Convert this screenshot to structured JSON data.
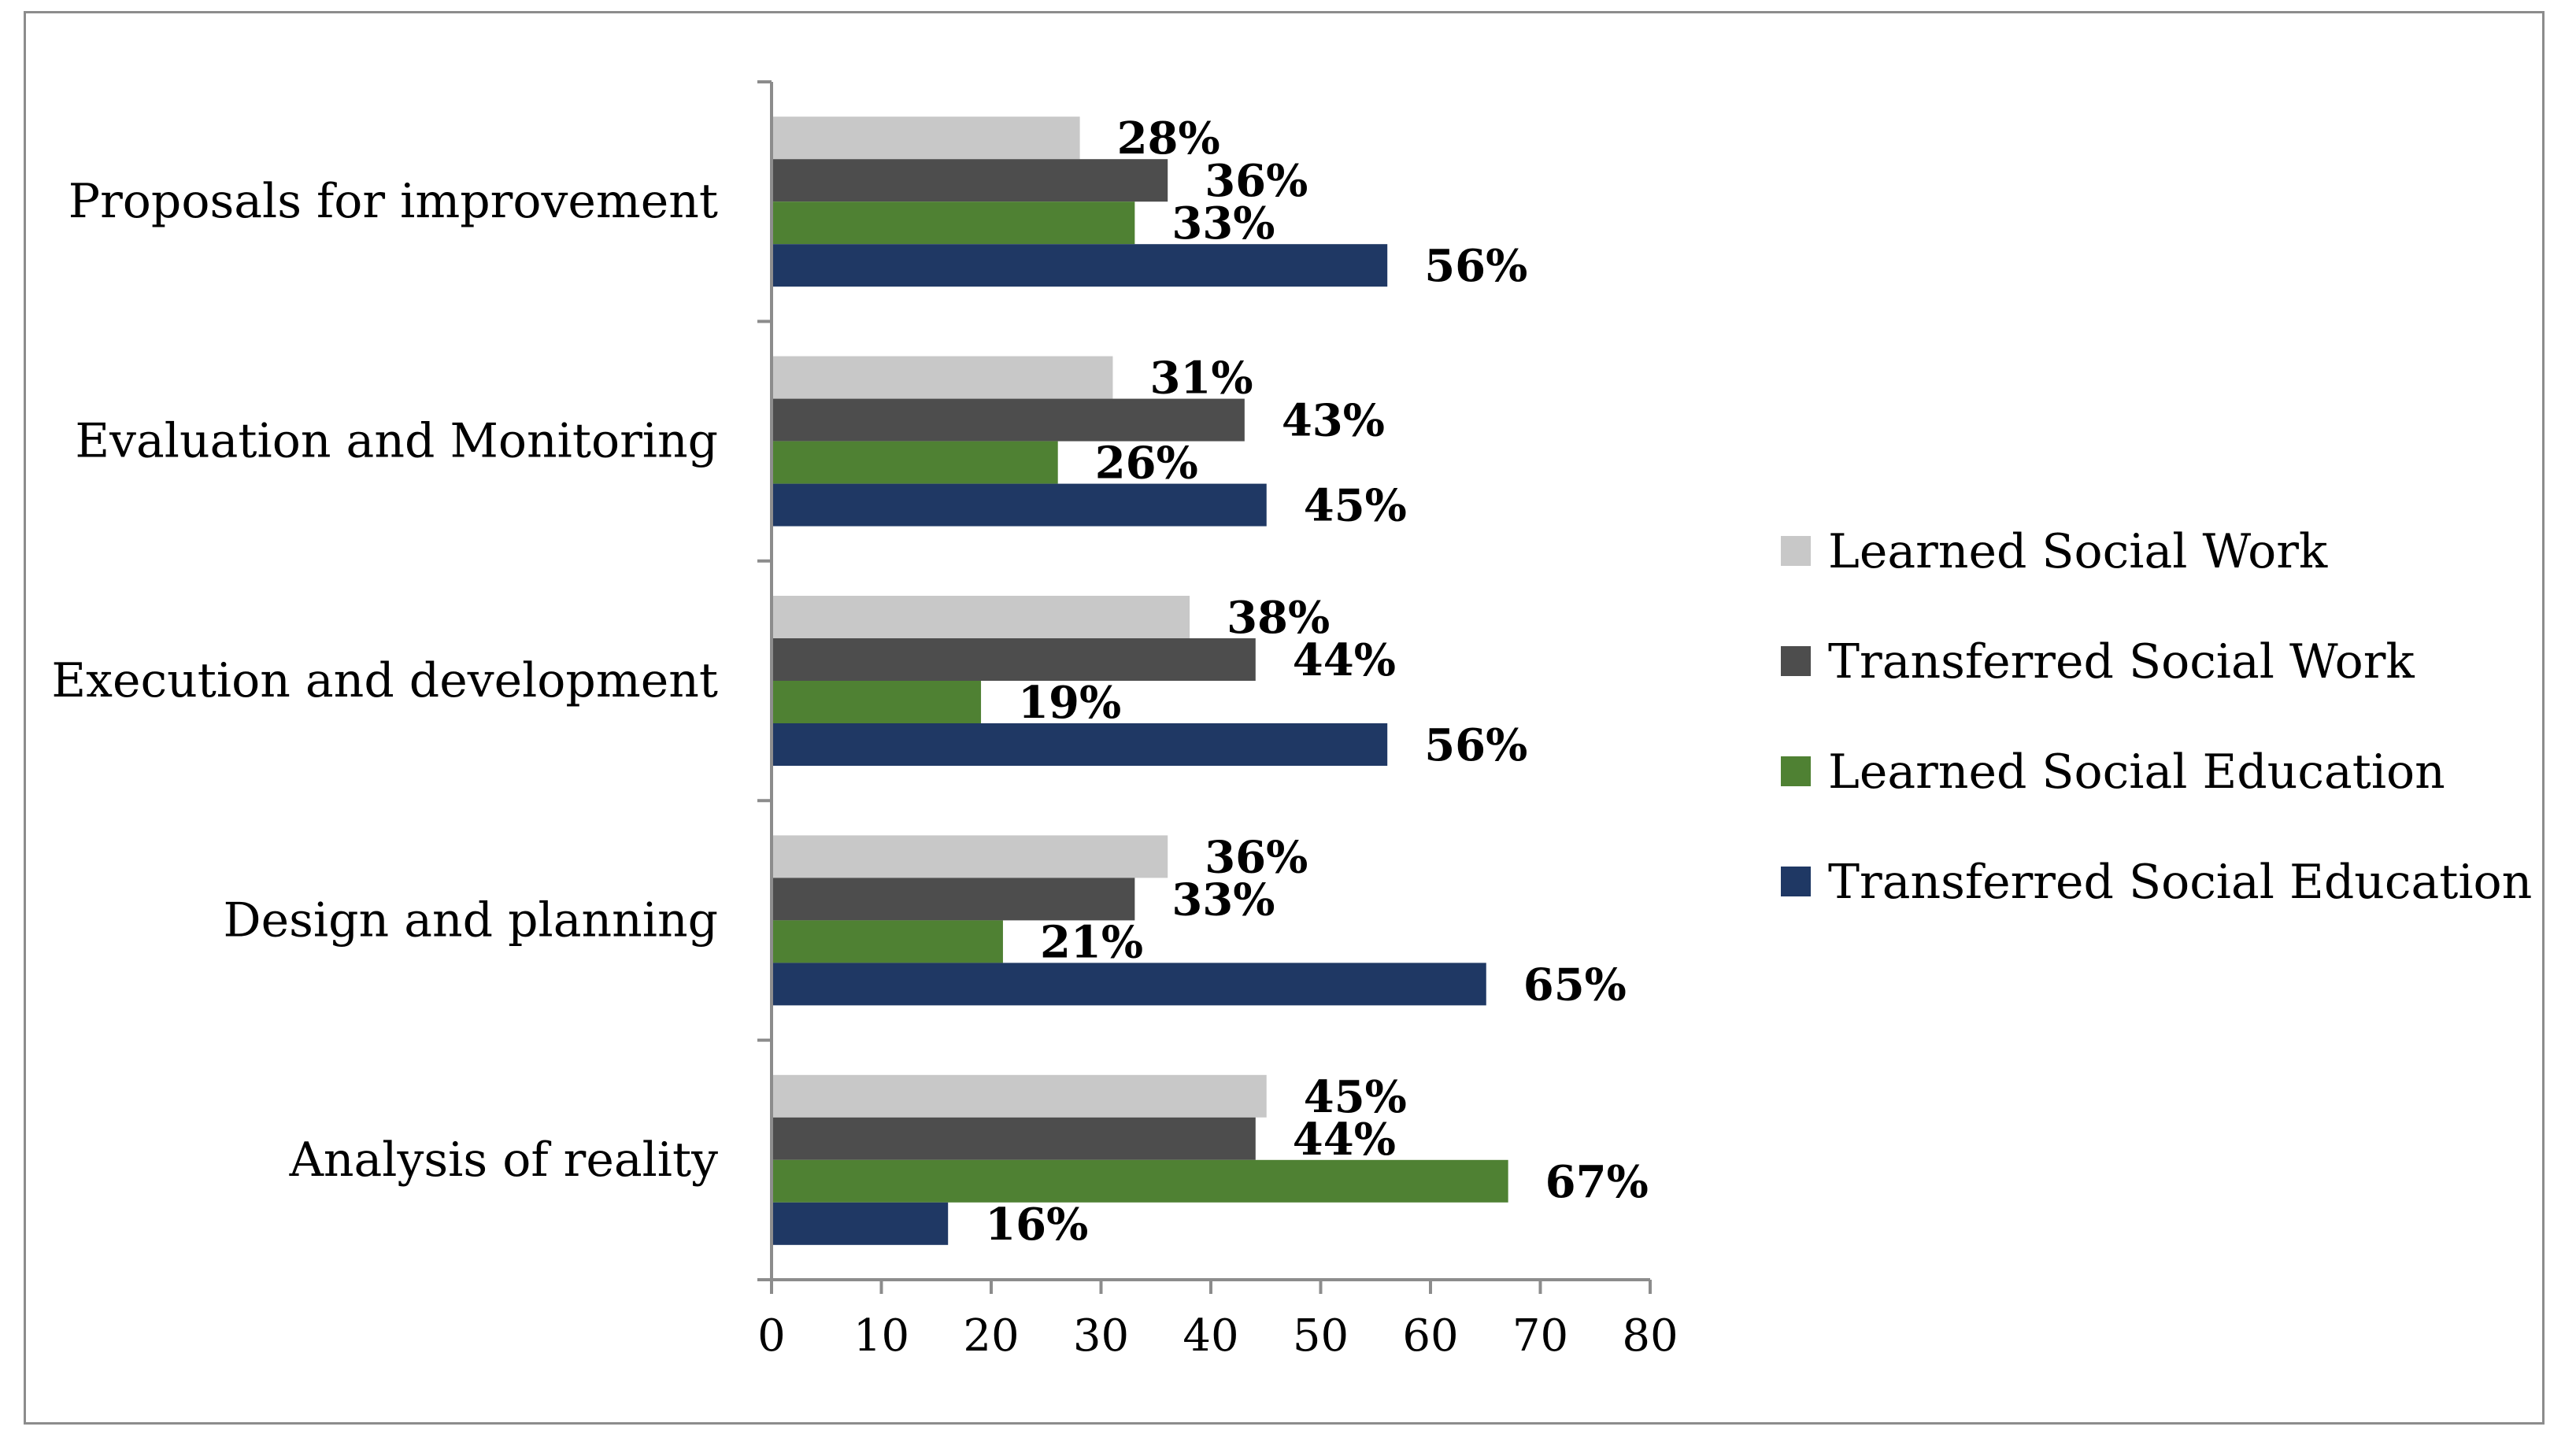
{
  "chart_data": {
    "type": "bar",
    "orientation": "horizontal",
    "title": "",
    "xlabel": "",
    "ylabel": "",
    "xlim": [
      0,
      80
    ],
    "x_ticks": [
      0,
      10,
      20,
      30,
      40,
      50,
      60,
      70,
      80
    ],
    "grid": false,
    "legend_position": "right",
    "categories": [
      "Proposals for improvement",
      "Evaluation and Monitoring",
      "Execution and development",
      "Design and planning",
      "Analysis of reality"
    ],
    "series": [
      {
        "name": "Learned Social Work",
        "color": "#c8c8c8",
        "values": [
          28,
          31,
          38,
          36,
          45
        ],
        "labels": [
          "28%",
          "31%",
          "38%",
          "36%",
          "45%"
        ]
      },
      {
        "name": "Transferred Social Work",
        "color": "#4d4d4d",
        "values": [
          36,
          43,
          44,
          33,
          44
        ],
        "labels": [
          "36%",
          "43%",
          "44%",
          "33%",
          "44%"
        ]
      },
      {
        "name": "Learned Social Education",
        "color": "#4f8133",
        "values": [
          33,
          26,
          19,
          21,
          67
        ],
        "labels": [
          "33%",
          "26%",
          "19%",
          "21%",
          "67%"
        ]
      },
      {
        "name": "Transferred Social Education",
        "color": "#1f3864",
        "values": [
          56,
          45,
          56,
          65,
          16
        ],
        "labels": [
          "56%",
          "45%",
          "56%",
          "65%",
          "16%"
        ]
      }
    ]
  }
}
